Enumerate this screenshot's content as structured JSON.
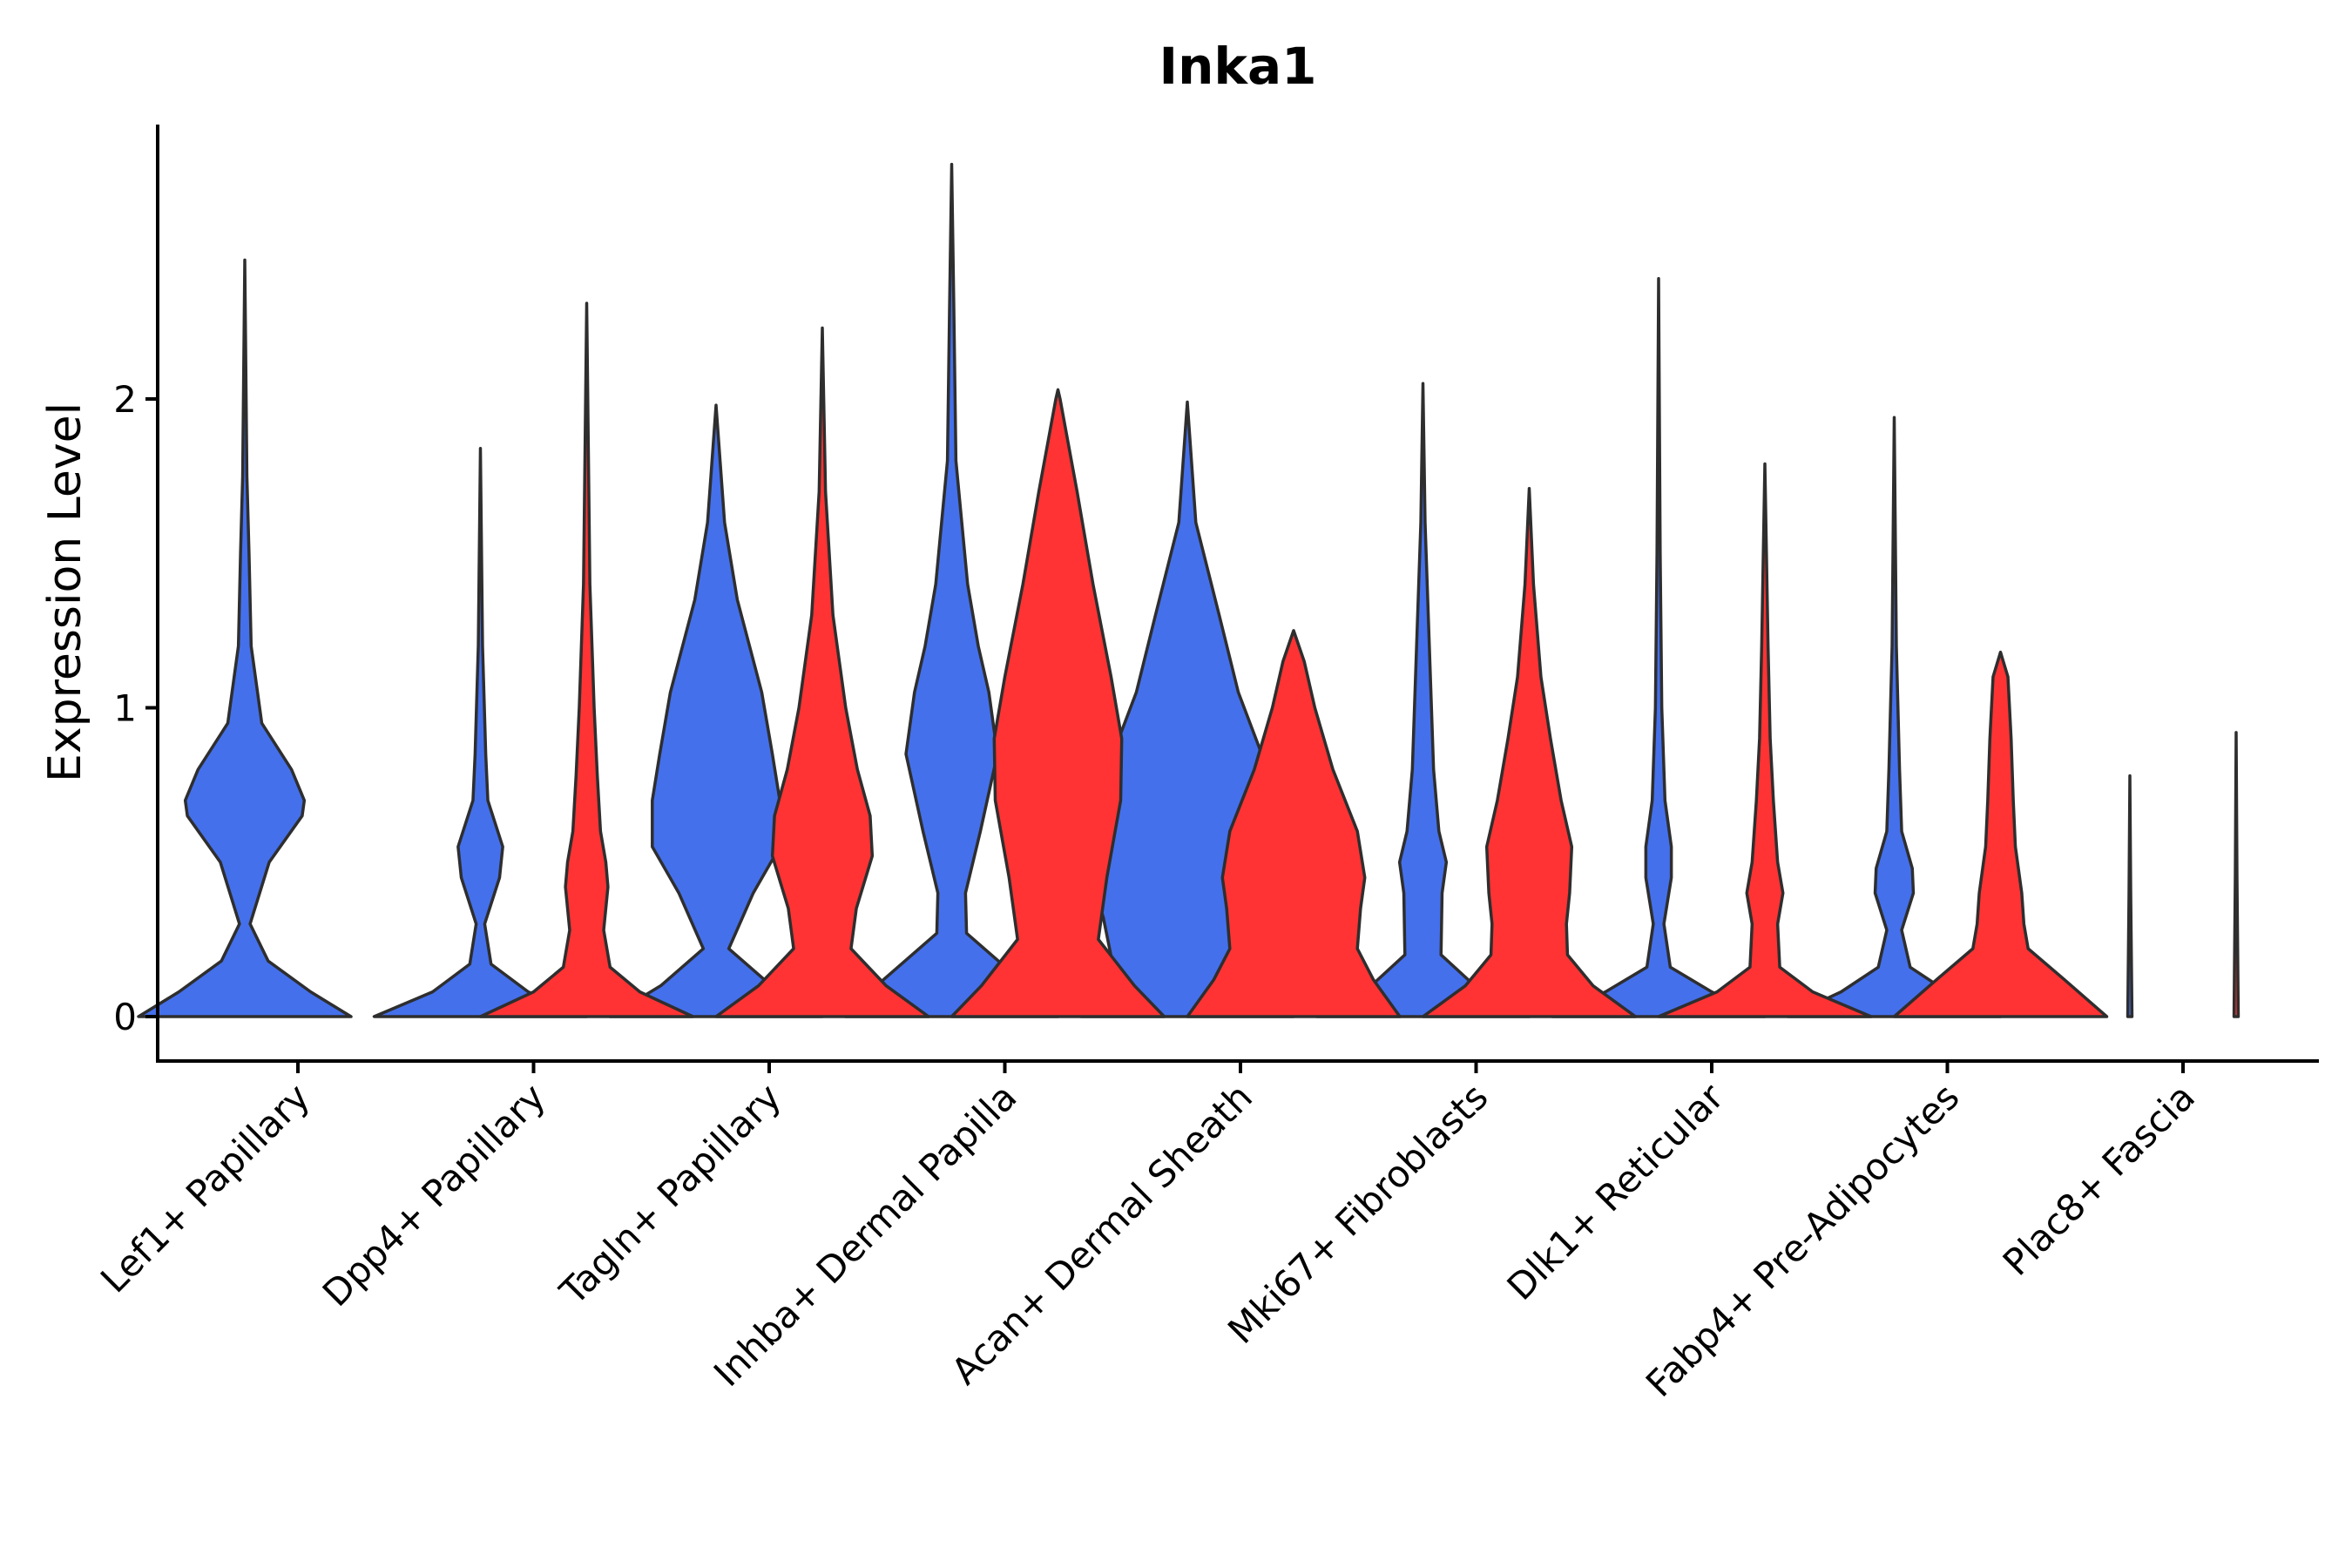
{
  "chart_data": {
    "type": "violin",
    "title": "Inka1",
    "xlabel": "",
    "ylabel": "Expression Level",
    "ylim": [
      -0.14,
      2.9
    ],
    "yticks": [
      0,
      1,
      2
    ],
    "categories": [
      "Lef1+ Papillary",
      "Dpp4+ Papillary",
      "Tagln+ Papillary",
      "Inhba+ Dermal Papilla",
      "Acan+ Dermal Sheath",
      "Mki67+ Fibroblasts",
      "Dlk1+ Reticular",
      "Fabp4+ Pre-Adipocytes",
      "Plac8+ Fascia"
    ],
    "series": [
      {
        "name": "blue group",
        "color": "#4470EC",
        "max_values": [
          2.45,
          1.84,
          1.98,
          2.76,
          1.99,
          2.05,
          2.39,
          1.94,
          0.78
        ],
        "profiles": [
          [
            [
              0,
              1
            ],
            [
              0.08,
              0.62
            ],
            [
              0.18,
              0.22
            ],
            [
              0.3,
              0.05
            ],
            [
              0.5,
              0.23
            ],
            [
              0.65,
              0.54
            ],
            [
              0.7,
              0.56
            ],
            [
              0.8,
              0.44
            ],
            [
              0.95,
              0.16
            ],
            [
              1.2,
              0.06
            ],
            [
              1.5,
              0.04
            ],
            [
              1.75,
              0.02
            ],
            [
              2.1,
              0.01
            ],
            [
              2.45,
              0
            ]
          ],
          [
            [
              0,
              1
            ],
            [
              0.08,
              0.45
            ],
            [
              0.17,
              0.1
            ],
            [
              0.3,
              0.04
            ],
            [
              0.45,
              0.18
            ],
            [
              0.55,
              0.21
            ],
            [
              0.7,
              0.07
            ],
            [
              0.85,
              0.05
            ],
            [
              1.2,
              0.02
            ],
            [
              1.84,
              0
            ]
          ],
          [
            [
              0,
              1
            ],
            [
              0.1,
              0.52
            ],
            [
              0.22,
              0.12
            ],
            [
              0.4,
              0.35
            ],
            [
              0.55,
              0.6
            ],
            [
              0.7,
              0.6
            ],
            [
              0.85,
              0.53
            ],
            [
              1.05,
              0.43
            ],
            [
              1.35,
              0.2
            ],
            [
              1.6,
              0.08
            ],
            [
              1.98,
              0
            ]
          ],
          [
            [
              0,
              1
            ],
            [
              0.12,
              0.64
            ],
            [
              0.27,
              0.14
            ],
            [
              0.4,
              0.13
            ],
            [
              0.6,
              0.27
            ],
            [
              0.85,
              0.43
            ],
            [
              1.05,
              0.35
            ],
            [
              1.2,
              0.25
            ],
            [
              1.4,
              0.15
            ],
            [
              1.8,
              0.04
            ],
            [
              2.3,
              0.02
            ],
            [
              2.76,
              0
            ]
          ],
          [
            [
              0,
              1
            ],
            [
              0.12,
              0.78
            ],
            [
              0.2,
              0.72
            ],
            [
              0.32,
              0.79
            ],
            [
              0.48,
              0.93
            ],
            [
              0.65,
              0.92
            ],
            [
              0.85,
              0.7
            ],
            [
              1.05,
              0.48
            ],
            [
              1.3,
              0.3
            ],
            [
              1.6,
              0.08
            ],
            [
              1.99,
              0
            ]
          ],
          [
            [
              0,
              1
            ],
            [
              0.08,
              0.55
            ],
            [
              0.2,
              0.17
            ],
            [
              0.4,
              0.18
            ],
            [
              0.5,
              0.22
            ],
            [
              0.6,
              0.15
            ],
            [
              0.8,
              0.1
            ],
            [
              1.2,
              0.06
            ],
            [
              1.6,
              0.02
            ],
            [
              2.05,
              0
            ]
          ],
          [
            [
              0,
              1
            ],
            [
              0.08,
              0.5
            ],
            [
              0.16,
              0.11
            ],
            [
              0.3,
              0.05
            ],
            [
              0.45,
              0.12
            ],
            [
              0.55,
              0.12
            ],
            [
              0.7,
              0.06
            ],
            [
              1.0,
              0.03
            ],
            [
              1.5,
              0.015
            ],
            [
              2.39,
              0
            ]
          ],
          [
            [
              0,
              1
            ],
            [
              0.08,
              0.5
            ],
            [
              0.16,
              0.15
            ],
            [
              0.28,
              0.07
            ],
            [
              0.4,
              0.18
            ],
            [
              0.48,
              0.17
            ],
            [
              0.6,
              0.07
            ],
            [
              0.8,
              0.05
            ],
            [
              1.2,
              0.02
            ],
            [
              1.94,
              0
            ]
          ],
          [
            [
              0,
              0.02
            ],
            [
              0.4,
              0.008
            ],
            [
              0.78,
              0
            ]
          ]
        ]
      },
      {
        "name": "red group",
        "color": "#FF3333",
        "max_values": [
          null,
          2.31,
          2.23,
          2.03,
          1.25,
          1.71,
          1.79,
          1.18,
          0.92
        ],
        "profiles": [
          null,
          [
            [
              0,
              1
            ],
            [
              0.08,
              0.5
            ],
            [
              0.16,
              0.22
            ],
            [
              0.28,
              0.16
            ],
            [
              0.42,
              0.2
            ],
            [
              0.5,
              0.18
            ],
            [
              0.6,
              0.13
            ],
            [
              0.78,
              0.1
            ],
            [
              1.0,
              0.07
            ],
            [
              1.4,
              0.03
            ],
            [
              2.31,
              0
            ]
          ],
          [
            [
              0,
              1
            ],
            [
              0.1,
              0.6
            ],
            [
              0.22,
              0.27
            ],
            [
              0.35,
              0.32
            ],
            [
              0.52,
              0.47
            ],
            [
              0.65,
              0.45
            ],
            [
              0.8,
              0.33
            ],
            [
              1.0,
              0.22
            ],
            [
              1.3,
              0.1
            ],
            [
              1.7,
              0.03
            ],
            [
              2.23,
              0
            ]
          ],
          [
            [
              0,
              1
            ],
            [
              0.1,
              0.72
            ],
            [
              0.25,
              0.38
            ],
            [
              0.45,
              0.46
            ],
            [
              0.7,
              0.59
            ],
            [
              0.9,
              0.6
            ],
            [
              1.1,
              0.5
            ],
            [
              1.4,
              0.33
            ],
            [
              1.7,
              0.18
            ],
            [
              2.0,
              0.02
            ],
            [
              2.03,
              0
            ]
          ],
          [
            [
              0,
              1
            ],
            [
              0.12,
              0.75
            ],
            [
              0.22,
              0.6
            ],
            [
              0.35,
              0.63
            ],
            [
              0.45,
              0.67
            ],
            [
              0.6,
              0.6
            ],
            [
              0.8,
              0.37
            ],
            [
              1.0,
              0.2
            ],
            [
              1.15,
              0.1
            ],
            [
              1.25,
              0
            ]
          ],
          [
            [
              0,
              1
            ],
            [
              0.1,
              0.6
            ],
            [
              0.2,
              0.36
            ],
            [
              0.3,
              0.35
            ],
            [
              0.4,
              0.38
            ],
            [
              0.55,
              0.4
            ],
            [
              0.7,
              0.3
            ],
            [
              0.9,
              0.2
            ],
            [
              1.1,
              0.11
            ],
            [
              1.4,
              0.04
            ],
            [
              1.71,
              0
            ]
          ],
          [
            [
              0,
              1
            ],
            [
              0.08,
              0.45
            ],
            [
              0.16,
              0.14
            ],
            [
              0.3,
              0.12
            ],
            [
              0.4,
              0.17
            ],
            [
              0.5,
              0.12
            ],
            [
              0.7,
              0.08
            ],
            [
              0.9,
              0.05
            ],
            [
              1.2,
              0.03
            ],
            [
              1.79,
              0
            ]
          ],
          [
            [
              0,
              1
            ],
            [
              0.12,
              0.6
            ],
            [
              0.22,
              0.26
            ],
            [
              0.3,
              0.22
            ],
            [
              0.4,
              0.2
            ],
            [
              0.55,
              0.14
            ],
            [
              0.7,
              0.12
            ],
            [
              0.9,
              0.1
            ],
            [
              1.1,
              0.07
            ],
            [
              1.18,
              0
            ]
          ],
          [
            [
              0,
              0.02
            ],
            [
              0.45,
              0.008
            ],
            [
              0.92,
              0
            ]
          ]
        ]
      }
    ]
  }
}
